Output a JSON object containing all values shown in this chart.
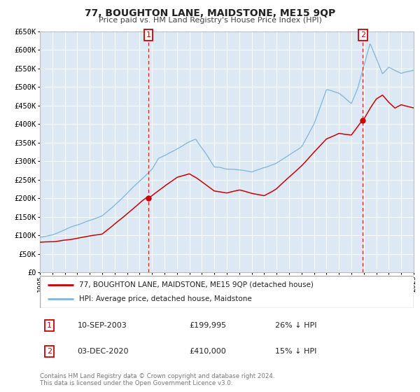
{
  "title": "77, BOUGHTON LANE, MAIDSTONE, ME15 9QP",
  "subtitle": "Price paid vs. HM Land Registry's House Price Index (HPI)",
  "legend_line1": "77, BOUGHTON LANE, MAIDSTONE, ME15 9QP (detached house)",
  "legend_line2": "HPI: Average price, detached house, Maidstone",
  "annotation1_date": "10-SEP-2003",
  "annotation1_price": "£199,995",
  "annotation1_hpi": "26% ↓ HPI",
  "annotation2_date": "03-DEC-2020",
  "annotation2_price": "£410,000",
  "annotation2_hpi": "15% ↓ HPI",
  "footer1": "Contains HM Land Registry data © Crown copyright and database right 2024.",
  "footer2": "This data is licensed under the Open Government Licence v3.0.",
  "red_color": "#cc0000",
  "blue_color": "#7eb5d6",
  "background_color": "#ffffff",
  "plot_bg_color": "#dce9f5",
  "grid_color": "#ffffff",
  "ylim": [
    0,
    650000
  ],
  "yticks": [
    0,
    50000,
    100000,
    150000,
    200000,
    250000,
    300000,
    350000,
    400000,
    450000,
    500000,
    550000,
    600000,
    650000
  ],
  "ytick_labels": [
    "£0",
    "£50K",
    "£100K",
    "£150K",
    "£200K",
    "£250K",
    "£300K",
    "£350K",
    "£400K",
    "£450K",
    "£500K",
    "£550K",
    "£600K",
    "£650K"
  ],
  "sale1_x": 2003.71,
  "sale1_y": 199995,
  "sale2_x": 2020.92,
  "sale2_y": 410000,
  "xmin": 1995,
  "xmax": 2025
}
